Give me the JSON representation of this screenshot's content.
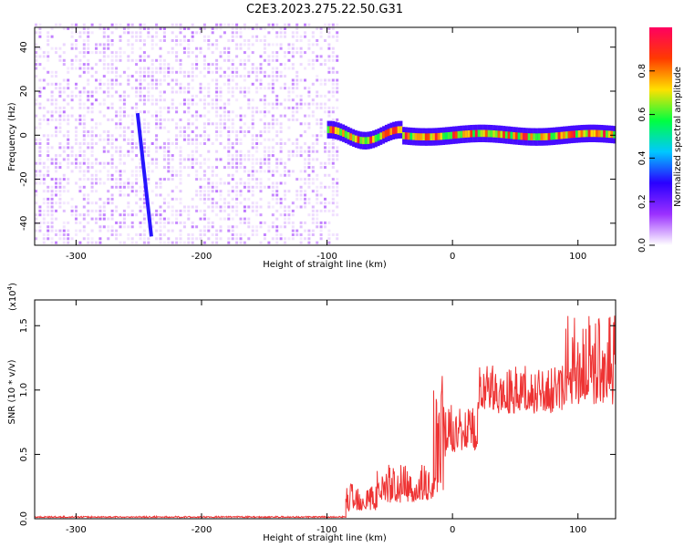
{
  "title": "C2E3.2023.275.22.50.G31",
  "chart_data": [
    {
      "type": "heatmap",
      "xlabel": "Height of straight line (km)",
      "ylabel": "Frequency (Hz)",
      "xlim": [
        -333,
        130
      ],
      "ylim": [
        -50,
        49
      ],
      "xticks": [
        -300,
        -200,
        -100,
        0,
        100
      ],
      "yticks": [
        -40,
        -20,
        0,
        20,
        40
      ],
      "colorbar": {
        "label": "Normalized spectral amplitude",
        "range": [
          0.0,
          1.0
        ],
        "ticks": [
          "0.0",
          "0.2",
          "0.4",
          "0.6",
          "0.8"
        ],
        "tick_values": [
          0.0,
          0.2,
          0.4,
          0.6,
          0.8
        ],
        "colors": [
          "#ffffff",
          "#9b30ff",
          "#2a00ff",
          "#00c8ff",
          "#00ff40",
          "#ffe000",
          "#ff3a00",
          "#ff0060"
        ]
      },
      "regions": [
        {
          "name": "broadband noise",
          "x_range": [
            -333,
            -92
          ],
          "freq_range": [
            -50,
            49
          ],
          "amplitude": 0.08
        },
        {
          "name": "carrier",
          "x_range": [
            -100,
            130
          ],
          "freq_center": 0,
          "freq_width": 8,
          "amplitude": 0.95
        }
      ],
      "streak": {
        "x": [
          -251,
          -240
        ],
        "freq": [
          10,
          -46
        ],
        "amplitude": 0.3
      }
    },
    {
      "type": "line",
      "xlabel": "Height of straight line (km)",
      "ylabel": "SNR (10 * v/v)",
      "multiplier": "(x10",
      "multiplier_exp": "4",
      "multiplier_close": ")",
      "xlim": [
        -333,
        130
      ],
      "ylim": [
        0.0,
        1.7
      ],
      "xticks": [
        -300,
        -200,
        -100,
        0,
        100
      ],
      "yticks": [
        "0.0",
        "0.5",
        "1.0",
        "1.5"
      ],
      "ytick_values": [
        0.0,
        0.5,
        1.0,
        1.5
      ],
      "color": "#ee3333",
      "segments": [
        {
          "x": [
            -333,
            -85
          ],
          "baseline": 0.01,
          "amplitude": 0.01
        },
        {
          "x": [
            -85,
            -60
          ],
          "baseline": 0.08,
          "amplitude": 0.22
        },
        {
          "x": [
            -60,
            -15
          ],
          "baseline": 0.15,
          "amplitude": 0.28
        },
        {
          "x": [
            -15,
            -5
          ],
          "baseline": 0.25,
          "amplitude": 0.9
        },
        {
          "x": [
            -5,
            20
          ],
          "baseline": 0.55,
          "amplitude": 0.35
        },
        {
          "x": [
            20,
            90
          ],
          "baseline": 0.85,
          "amplitude": 0.35
        },
        {
          "x": [
            90,
            130
          ],
          "baseline": 0.95,
          "amplitude": 0.7
        }
      ]
    }
  ]
}
